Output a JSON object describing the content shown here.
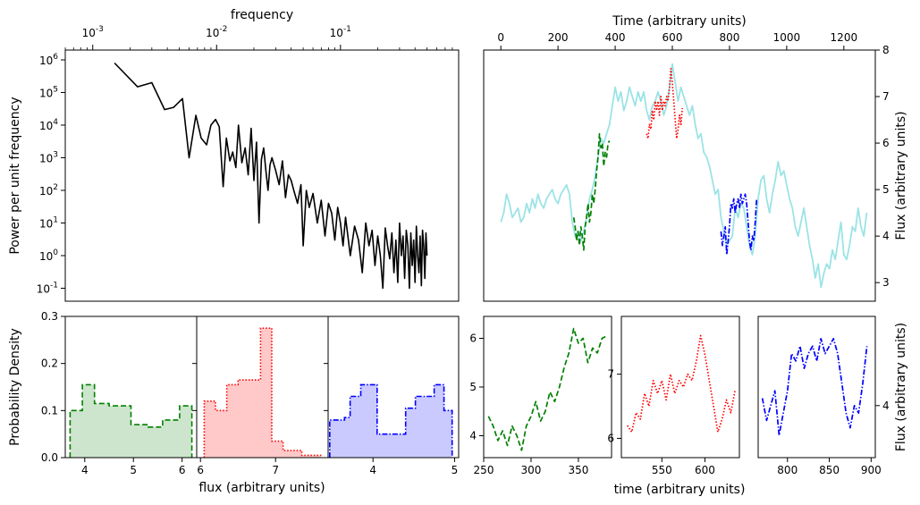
{
  "chart_data": [
    {
      "id": "psd",
      "type": "line",
      "xlabel": "frequency",
      "ylabel": "Power per unit frequency",
      "xscale": "log",
      "yscale": "log",
      "xlim": [
        0.0006,
        0.9
      ],
      "ylim": [
        0.04,
        2000000
      ],
      "x_ticks": [
        0.001,
        0.01,
        0.1
      ],
      "x_tick_labels": [
        "10^-3",
        "10^-2",
        "10^-1"
      ],
      "y_ticks": [
        0.1,
        1,
        10,
        100,
        1000,
        10000,
        100000,
        1000000
      ],
      "y_tick_labels": [
        "10^-1",
        "10^0",
        "10^1",
        "10^2",
        "10^3",
        "10^4",
        "10^5",
        "10^6"
      ],
      "x_axis_position": "top",
      "series": [
        {
          "color": "#000000",
          "style": "solid",
          "x": [
            0.0015,
            0.0023,
            0.003,
            0.0038,
            0.0045,
            0.0053,
            0.006,
            0.0068,
            0.0075,
            0.0083,
            0.009,
            0.0098,
            0.0105,
            0.0113,
            0.012,
            0.0128,
            0.0135,
            0.0143,
            0.015,
            0.016,
            0.017,
            0.018,
            0.019,
            0.02,
            0.021,
            0.022,
            0.023,
            0.024,
            0.025,
            0.026,
            0.027,
            0.028,
            0.03,
            0.032,
            0.034,
            0.036,
            0.038,
            0.04,
            0.042,
            0.045,
            0.048,
            0.05,
            0.053,
            0.056,
            0.06,
            0.065,
            0.07,
            0.075,
            0.08,
            0.085,
            0.09,
            0.095,
            0.1,
            0.105,
            0.11,
            0.12,
            0.13,
            0.14,
            0.15,
            0.16,
            0.17,
            0.18,
            0.19,
            0.2,
            0.21,
            0.22,
            0.23,
            0.24,
            0.25,
            0.26,
            0.27,
            0.28,
            0.29,
            0.3,
            0.31,
            0.32,
            0.33,
            0.34,
            0.35,
            0.36,
            0.37,
            0.38,
            0.39,
            0.4,
            0.41,
            0.42,
            0.43,
            0.44,
            0.45,
            0.46,
            0.47,
            0.48,
            0.49,
            0.5
          ],
          "y": [
            800000,
            150000,
            200000,
            30000,
            35000,
            65000,
            1000,
            20000,
            4000,
            2500,
            10000,
            15000,
            9000,
            130,
            4000,
            800,
            1500,
            500,
            10000,
            700,
            2000,
            300,
            8000,
            200,
            3000,
            10,
            900,
            2000,
            400,
            100,
            600,
            1000,
            400,
            150,
            800,
            60,
            300,
            200,
            100,
            40,
            150,
            2,
            100,
            30,
            80,
            10,
            50,
            4,
            40,
            20,
            3,
            30,
            10,
            2,
            15,
            1,
            8,
            3,
            0.3,
            10,
            2,
            6,
            0.5,
            4,
            1,
            0.1,
            7,
            2,
            0.8,
            5,
            0.3,
            3,
            0.15,
            10,
            1,
            4,
            0.2,
            6,
            2,
            0.1,
            5,
            0.5,
            3,
            0.15,
            8,
            1,
            0.3,
            4,
            0.12,
            6,
            2,
            0.2,
            5,
            1
          ]
        }
      ]
    },
    {
      "id": "timeseries",
      "type": "line",
      "xlabel": "Time (arbitrary units)",
      "ylabel": "Flux (arbitrary units)",
      "xlim": [
        -60,
        1310
      ],
      "ylim": [
        2.6,
        8.0
      ],
      "x_ticks": [
        0,
        200,
        400,
        600,
        800,
        1000,
        1200
      ],
      "y_ticks": [
        3,
        4,
        5,
        6,
        7,
        8
      ],
      "x_axis_position": "top",
      "y_axis_position": "right",
      "series": [
        {
          "color": "#9be3e6",
          "style": "solid",
          "x": [
            0,
            10,
            20,
            30,
            40,
            50,
            60,
            70,
            80,
            90,
            100,
            110,
            120,
            130,
            140,
            150,
            160,
            170,
            180,
            190,
            200,
            210,
            220,
            230,
            240,
            250,
            260,
            270,
            280,
            290,
            300,
            310,
            320,
            330,
            340,
            350,
            360,
            370,
            380,
            390,
            400,
            410,
            420,
            430,
            440,
            450,
            460,
            470,
            480,
            490,
            500,
            510,
            520,
            530,
            540,
            550,
            560,
            570,
            580,
            590,
            600,
            610,
            620,
            630,
            640,
            650,
            660,
            670,
            680,
            690,
            700,
            710,
            720,
            730,
            740,
            750,
            760,
            770,
            780,
            790,
            800,
            810,
            820,
            830,
            840,
            850,
            860,
            870,
            880,
            890,
            900,
            910,
            920,
            930,
            940,
            950,
            960,
            970,
            980,
            990,
            1000,
            1010,
            1020,
            1030,
            1040,
            1050,
            1060,
            1070,
            1080,
            1090,
            1100,
            1110,
            1120,
            1130,
            1140,
            1150,
            1160,
            1170,
            1180,
            1190,
            1200,
            1210,
            1220,
            1230,
            1240,
            1250,
            1260,
            1270,
            1280
          ],
          "y": [
            4.3,
            4.5,
            4.9,
            4.7,
            4.4,
            4.5,
            4.6,
            4.3,
            4.4,
            4.7,
            4.5,
            4.8,
            4.6,
            4.9,
            4.7,
            4.6,
            4.8,
            4.9,
            5.0,
            4.8,
            4.7,
            4.9,
            5.0,
            5.1,
            4.9,
            4.3,
            4.0,
            4.1,
            3.9,
            4.1,
            4.4,
            4.8,
            5.0,
            5.3,
            5.7,
            6.1,
            6.0,
            6.2,
            6.4,
            6.8,
            7.2,
            6.9,
            7.1,
            6.7,
            6.9,
            7.2,
            7.0,
            6.8,
            7.1,
            6.9,
            7.1,
            6.7,
            6.5,
            6.8,
            6.9,
            7.1,
            6.9,
            6.6,
            6.8,
            7.2,
            7.7,
            7.3,
            6.9,
            7.2,
            7.0,
            6.8,
            6.6,
            6.8,
            6.4,
            6.1,
            6.2,
            5.8,
            5.7,
            5.5,
            5.2,
            4.9,
            5.0,
            4.4,
            4.1,
            3.8,
            3.9,
            4.0,
            4.6,
            4.4,
            4.7,
            4.6,
            4.2,
            3.8,
            3.6,
            4.0,
            4.8,
            5.2,
            5.3,
            4.8,
            4.5,
            4.9,
            5.2,
            5.6,
            5.3,
            5.4,
            5.1,
            4.8,
            4.6,
            4.2,
            4.0,
            4.3,
            4.6,
            4.2,
            3.8,
            3.5,
            3.1,
            3.4,
            2.9,
            3.2,
            3.4,
            3.3,
            3.7,
            3.5,
            3.9,
            4.3,
            3.6,
            3.5,
            3.8,
            4.2,
            4.1,
            4.6,
            4.2,
            4.0,
            4.5
          ]
        },
        {
          "color": "#008000",
          "style": "dashed",
          "x": [
            255,
            260,
            265,
            270,
            275,
            280,
            285,
            290,
            295,
            300,
            305,
            310,
            315,
            320,
            325,
            330,
            335,
            340,
            345,
            350,
            355,
            360,
            365,
            370,
            375,
            380
          ],
          "y": [
            4.4,
            4.2,
            3.9,
            4.1,
            3.8,
            4.2,
            4.0,
            3.7,
            4.2,
            4.4,
            4.7,
            4.3,
            4.5,
            4.9,
            4.7,
            5.0,
            5.4,
            5.7,
            6.2,
            5.9,
            6.0,
            5.5,
            5.8,
            5.7,
            6.0,
            6.05
          ]
        },
        {
          "color": "#ff0000",
          "style": "dotted",
          "x": [
            510,
            515,
            520,
            525,
            530,
            535,
            540,
            545,
            550,
            555,
            560,
            565,
            570,
            575,
            580,
            585,
            590,
            595,
            600,
            605,
            610,
            615,
            620,
            625,
            630,
            635
          ],
          "y": [
            6.2,
            6.1,
            6.4,
            6.3,
            6.7,
            6.5,
            6.9,
            6.7,
            6.9,
            6.6,
            7.0,
            6.7,
            6.9,
            6.8,
            7.0,
            6.9,
            7.2,
            7.6,
            7.3,
            6.9,
            6.5,
            6.1,
            6.3,
            6.6,
            6.4,
            6.75
          ]
        },
        {
          "color": "#0000ff",
          "style": "dashdot",
          "x": [
            770,
            775,
            780,
            785,
            790,
            795,
            800,
            805,
            810,
            815,
            820,
            825,
            830,
            835,
            840,
            845,
            850,
            855,
            860,
            865,
            870,
            875,
            880,
            885,
            890,
            895
          ],
          "y": [
            4.1,
            3.8,
            4.0,
            4.2,
            3.6,
            3.9,
            4.2,
            4.7,
            4.6,
            4.8,
            4.5,
            4.7,
            4.8,
            4.6,
            4.9,
            4.7,
            4.8,
            4.9,
            4.7,
            4.3,
            3.9,
            3.7,
            4.0,
            3.9,
            4.3,
            4.8
          ]
        }
      ]
    },
    {
      "id": "hist-green",
      "type": "bar",
      "ylabel": "Probability Density",
      "ylim": [
        0,
        0.3
      ],
      "y_ticks": [
        0.0,
        0.1,
        0.2,
        0.3
      ],
      "x_ticks": [
        4,
        5,
        6
      ],
      "xlim": [
        3.6,
        6.3
      ],
      "color": "#008000",
      "fill": "#cde5cd",
      "style": "dashed",
      "bin_edges": [
        3.7,
        3.95,
        4.2,
        4.5,
        4.95,
        5.3,
        5.6,
        5.95,
        6.2
      ],
      "values": [
        0.1,
        0.155,
        0.115,
        0.11,
        0.07,
        0.065,
        0.08,
        0.11
      ]
    },
    {
      "id": "hist-red",
      "type": "bar",
      "xlabel": "flux (arbitrary units)",
      "x_ticks": [
        6,
        7
      ],
      "xlim": [
        5.95,
        7.7
      ],
      "ylim": [
        0,
        0.3
      ],
      "color": "#ff0000",
      "fill": "#ffc9c9",
      "style": "dotted",
      "bin_edges": [
        6.05,
        6.2,
        6.35,
        6.5,
        6.8,
        6.95,
        7.1,
        7.35,
        7.6
      ],
      "values": [
        0.12,
        0.1,
        0.155,
        0.165,
        0.275,
        0.035,
        0.015,
        0.005
      ]
    },
    {
      "id": "hist-blue",
      "type": "bar",
      "x_ticks": [
        4,
        5
      ],
      "xlim": [
        3.45,
        5.05
      ],
      "ylim": [
        0,
        0.3
      ],
      "color": "#0000ff",
      "fill": "#cacaff",
      "style": "dashdot",
      "bin_edges": [
        3.47,
        3.65,
        3.72,
        3.85,
        4.05,
        4.4,
        4.52,
        4.75,
        4.87,
        4.97
      ],
      "values": [
        0.08,
        0.085,
        0.13,
        0.155,
        0.05,
        0.105,
        0.13,
        0.155,
        0.1
      ]
    },
    {
      "id": "zoom-green",
      "type": "line",
      "xlim": [
        250,
        385
      ],
      "ylim": [
        3.55,
        6.45
      ],
      "x_ticks": [
        250,
        300,
        350
      ],
      "y_ticks": [
        4,
        5,
        6
      ],
      "series_ref": 1
    },
    {
      "id": "zoom-red",
      "type": "line",
      "xlabel": "time (arbitrary units)",
      "xlim": [
        503,
        640
      ],
      "ylim": [
        5.7,
        7.9
      ],
      "x_ticks": [
        550,
        600
      ],
      "y_ticks": [
        6,
        7
      ],
      "series_ref": 2
    },
    {
      "id": "zoom-blue",
      "type": "line",
      "ylabel": "Flux (arbitrary units)",
      "xlim": [
        765,
        905
      ],
      "ylim": [
        3.3,
        5.2
      ],
      "x_ticks": [
        800,
        850,
        900
      ],
      "y_ticks": [
        4
      ],
      "y_axis_position": "right",
      "series_ref": 3
    }
  ]
}
